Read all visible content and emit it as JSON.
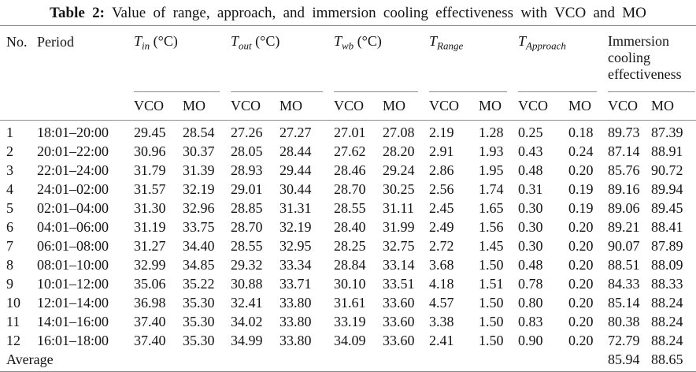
{
  "colors": {
    "background": "#ffffff",
    "text": "#141414",
    "rule": "#8a8a8a"
  },
  "title": {
    "label": "Table 2:",
    "text": "Value of range, approach, and immersion cooling effectiveness with VCO and MO"
  },
  "table": {
    "lead_columns": [
      "No.",
      "Period"
    ],
    "groups": [
      {
        "symbol": "T",
        "subscript": "in",
        "unit": "(°C)"
      },
      {
        "symbol": "T",
        "subscript": "out",
        "unit": "(°C)"
      },
      {
        "symbol": "T",
        "subscript": "wb",
        "unit": "(°C)"
      },
      {
        "symbol": "T",
        "subscript": "Range",
        "unit": ""
      },
      {
        "symbol": "T",
        "subscript": "Approach",
        "unit": ""
      },
      {
        "label": "Immersion cooling effectiveness"
      }
    ],
    "sub_labels": {
      "vco": "VCO",
      "mo": "MO"
    },
    "rows": [
      {
        "no": "1",
        "period": "18:01–20:00",
        "values": [
          "29.45",
          "28.54",
          "27.26",
          "27.27",
          "27.01",
          "27.08",
          "2.19",
          "1.28",
          "0.25",
          "0.18",
          "89.73",
          "87.39"
        ]
      },
      {
        "no": "2",
        "period": "20:01–22:00",
        "values": [
          "30.96",
          "30.37",
          "28.05",
          "28.44",
          "27.62",
          "28.20",
          "2.91",
          "1.93",
          "0.43",
          "0.24",
          "87.14",
          "88.91"
        ]
      },
      {
        "no": "3",
        "period": "22:01–24:00",
        "values": [
          "31.79",
          "31.39",
          "28.93",
          "29.44",
          "28.46",
          "29.24",
          "2.86",
          "1.95",
          "0.48",
          "0.20",
          "85.76",
          "90.72"
        ]
      },
      {
        "no": "4",
        "period": "24:01–02:00",
        "values": [
          "31.57",
          "32.19",
          "29.01",
          "30.44",
          "28.70",
          "30.25",
          "2.56",
          "1.74",
          "0.31",
          "0.19",
          "89.16",
          "89.94"
        ]
      },
      {
        "no": "5",
        "period": "02:01–04:00",
        "values": [
          "31.30",
          "32.96",
          "28.85",
          "31.31",
          "28.55",
          "31.11",
          "2.45",
          "1.65",
          "0.30",
          "0.19",
          "89.06",
          "89.45"
        ]
      },
      {
        "no": "6",
        "period": "04:01–06:00",
        "values": [
          "31.19",
          "33.75",
          "28.70",
          "32.19",
          "28.40",
          "31.99",
          "2.49",
          "1.56",
          "0.30",
          "0.20",
          "89.21",
          "88.41"
        ]
      },
      {
        "no": "7",
        "period": "06:01–08:00",
        "values": [
          "31.27",
          "34.40",
          "28.55",
          "32.95",
          "28.25",
          "32.75",
          "2.72",
          "1.45",
          "0.30",
          "0.20",
          "90.07",
          "87.89"
        ]
      },
      {
        "no": "8",
        "period": "08:01–10:00",
        "values": [
          "32.99",
          "34.85",
          "29.32",
          "33.34",
          "28.84",
          "33.14",
          "3.68",
          "1.50",
          "0.48",
          "0.20",
          "88.51",
          "88.09"
        ]
      },
      {
        "no": "9",
        "period": "10:01–12:00",
        "values": [
          "35.06",
          "35.22",
          "30.88",
          "33.71",
          "30.10",
          "33.51",
          "4.18",
          "1.51",
          "0.78",
          "0.20",
          "84.33",
          "88.33"
        ]
      },
      {
        "no": "10",
        "period": "12:01–14:00",
        "values": [
          "36.98",
          "35.30",
          "32.41",
          "33.80",
          "31.61",
          "33.60",
          "4.57",
          "1.50",
          "0.80",
          "0.20",
          "85.14",
          "88.24"
        ]
      },
      {
        "no": "11",
        "period": "14:01–16:00",
        "values": [
          "37.40",
          "35.30",
          "34.02",
          "33.80",
          "33.19",
          "33.60",
          "3.38",
          "1.50",
          "0.83",
          "0.20",
          "80.38",
          "88.24"
        ]
      },
      {
        "no": "12",
        "period": "16:01–18:00",
        "values": [
          "37.40",
          "35.30",
          "34.99",
          "33.80",
          "34.09",
          "33.60",
          "2.41",
          "1.50",
          "0.90",
          "0.20",
          "72.79",
          "88.24"
        ]
      }
    ],
    "footer": {
      "label": "Average",
      "values": [
        "85.94",
        "88.65"
      ]
    }
  }
}
